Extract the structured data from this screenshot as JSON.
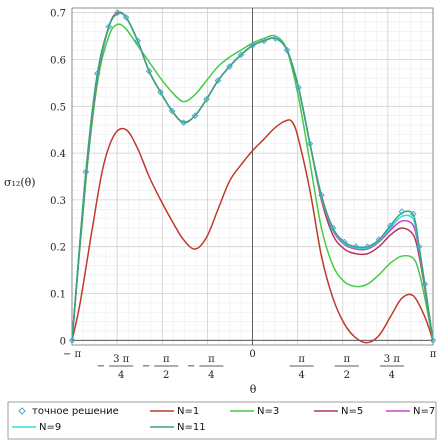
{
  "chart_data": {
    "type": "line",
    "ylabel": "σ₁₂(θ)",
    "xlabel": "θ",
    "xlim": [
      -3.14159,
      3.14159
    ],
    "ylim": [
      -0.01,
      0.71
    ],
    "grid": true,
    "legend_placement": "bottom",
    "y_ticks": [
      0,
      0.1,
      0.2,
      0.3,
      0.4,
      0.5,
      0.6,
      0.7
    ],
    "y_tick_labels": [
      "0",
      "0.1",
      "0.2",
      "0.3",
      "0.4",
      "0.5",
      "0.6",
      "0.7"
    ],
    "x_ticks": [
      -3.14159,
      -2.35619,
      -1.5708,
      -0.7854,
      0,
      0.7854,
      1.5708,
      2.35619,
      3.14159
    ],
    "x_tick_labels": [
      {
        "num": "π",
        "den": "",
        "sign": "−"
      },
      {
        "num": "3 π",
        "den": "4",
        "sign": "−"
      },
      {
        "num": "π",
        "den": "2",
        "sign": "−"
      },
      {
        "num": "π",
        "den": "4",
        "sign": "−"
      },
      {
        "num": "0",
        "den": "",
        "sign": ""
      },
      {
        "num": "π",
        "den": "4",
        "sign": ""
      },
      {
        "num": "π",
        "den": "2",
        "sign": ""
      },
      {
        "num": "3 π",
        "den": "4",
        "sign": ""
      },
      {
        "num": "π",
        "den": "",
        "sign": ""
      }
    ],
    "series": [
      {
        "name": "точное решение",
        "color": "#4aa8c8",
        "marker": "diamond",
        "x": [
          -3.14,
          -2.9,
          -2.7,
          -2.5,
          -2.35,
          -2.2,
          -2.0,
          -1.8,
          -1.6,
          -1.4,
          -1.2,
          -1.0,
          -0.8,
          -0.6,
          -0.4,
          -0.2,
          0,
          0.2,
          0.4,
          0.6,
          0.8,
          1.0,
          1.2,
          1.4,
          1.6,
          1.8,
          2.0,
          2.2,
          2.4,
          2.6,
          2.8,
          2.9,
          3.0,
          3.14
        ],
        "y": [
          0.0,
          0.36,
          0.57,
          0.67,
          0.7,
          0.69,
          0.64,
          0.575,
          0.53,
          0.49,
          0.465,
          0.48,
          0.515,
          0.555,
          0.585,
          0.61,
          0.63,
          0.64,
          0.645,
          0.62,
          0.54,
          0.42,
          0.31,
          0.24,
          0.21,
          0.2,
          0.2,
          0.215,
          0.245,
          0.275,
          0.27,
          0.2,
          0.12,
          0.0
        ]
      },
      {
        "name": "N=1",
        "color": "#c0392b",
        "x": [
          -3.14,
          -3.0,
          -2.8,
          -2.6,
          -2.4,
          -2.2,
          -2.0,
          -1.8,
          -1.6,
          -1.4,
          -1.2,
          -1.0,
          -0.8,
          -0.6,
          -0.4,
          -0.2,
          0,
          0.2,
          0.4,
          0.6,
          0.7,
          0.8,
          1.0,
          1.2,
          1.4,
          1.6,
          1.8,
          2.0,
          2.2,
          2.4,
          2.6,
          2.8,
          3.0,
          3.14
        ],
        "y": [
          0.0,
          0.08,
          0.23,
          0.37,
          0.44,
          0.45,
          0.41,
          0.35,
          0.3,
          0.255,
          0.215,
          0.195,
          0.22,
          0.28,
          0.34,
          0.375,
          0.405,
          0.43,
          0.455,
          0.47,
          0.465,
          0.43,
          0.32,
          0.18,
          0.09,
          0.035,
          0.005,
          -0.005,
          0.01,
          0.05,
          0.09,
          0.095,
          0.05,
          0.0
        ]
      },
      {
        "name": "N=3",
        "color": "#44cc44",
        "x": [
          -3.14,
          -2.9,
          -2.7,
          -2.5,
          -2.35,
          -2.2,
          -2.0,
          -1.8,
          -1.6,
          -1.4,
          -1.2,
          -1.0,
          -0.8,
          -0.6,
          -0.4,
          -0.2,
          0,
          0.2,
          0.4,
          0.6,
          0.8,
          1.0,
          1.2,
          1.4,
          1.6,
          1.8,
          2.0,
          2.2,
          2.4,
          2.6,
          2.8,
          2.9,
          3.0,
          3.14
        ],
        "y": [
          0.0,
          0.34,
          0.55,
          0.65,
          0.675,
          0.665,
          0.63,
          0.595,
          0.56,
          0.53,
          0.51,
          0.525,
          0.555,
          0.585,
          0.605,
          0.62,
          0.635,
          0.645,
          0.65,
          0.62,
          0.52,
          0.38,
          0.24,
          0.16,
          0.125,
          0.115,
          0.12,
          0.14,
          0.165,
          0.18,
          0.175,
          0.145,
          0.09,
          0.0
        ]
      },
      {
        "name": "N=5",
        "color": "#b03a5b",
        "x": [
          -3.14,
          -2.9,
          -2.7,
          -2.5,
          -2.35,
          -2.2,
          -2.0,
          -1.8,
          -1.6,
          -1.4,
          -1.2,
          -1.0,
          -0.8,
          -0.6,
          -0.4,
          -0.2,
          0,
          0.2,
          0.4,
          0.6,
          0.8,
          1.0,
          1.2,
          1.4,
          1.6,
          1.8,
          2.0,
          2.2,
          2.4,
          2.6,
          2.8,
          2.9,
          3.0,
          3.14
        ],
        "y": [
          0.0,
          0.35,
          0.56,
          0.67,
          0.7,
          0.69,
          0.64,
          0.575,
          0.53,
          0.49,
          0.466,
          0.48,
          0.515,
          0.555,
          0.585,
          0.61,
          0.63,
          0.64,
          0.645,
          0.62,
          0.54,
          0.42,
          0.3,
          0.225,
          0.195,
          0.185,
          0.185,
          0.2,
          0.225,
          0.24,
          0.225,
          0.18,
          0.11,
          0.0
        ]
      },
      {
        "name": "N=7",
        "color": "#cc44cc",
        "x": [
          -3.14,
          -2.9,
          -2.7,
          -2.5,
          -2.35,
          -2.2,
          -2.0,
          -1.8,
          -1.6,
          -1.4,
          -1.2,
          -1.0,
          -0.8,
          -0.6,
          -0.4,
          -0.2,
          0,
          0.2,
          0.4,
          0.6,
          0.8,
          1.0,
          1.2,
          1.4,
          1.6,
          1.8,
          2.0,
          2.2,
          2.4,
          2.6,
          2.8,
          2.9,
          3.0,
          3.14
        ],
        "y": [
          0.0,
          0.355,
          0.565,
          0.67,
          0.698,
          0.69,
          0.64,
          0.575,
          0.53,
          0.49,
          0.465,
          0.48,
          0.515,
          0.555,
          0.585,
          0.61,
          0.63,
          0.64,
          0.645,
          0.62,
          0.54,
          0.42,
          0.305,
          0.235,
          0.205,
          0.195,
          0.195,
          0.21,
          0.235,
          0.255,
          0.245,
          0.19,
          0.115,
          0.0
        ]
      },
      {
        "name": "N=9",
        "color": "#33dddd",
        "x": [
          -3.14,
          -2.9,
          -2.7,
          -2.5,
          -2.35,
          -2.2,
          -2.0,
          -1.8,
          -1.6,
          -1.4,
          -1.2,
          -1.0,
          -0.8,
          -0.6,
          -0.4,
          -0.2,
          0,
          0.2,
          0.4,
          0.6,
          0.8,
          1.0,
          1.2,
          1.4,
          1.6,
          1.8,
          2.0,
          2.2,
          2.4,
          2.6,
          2.8,
          2.9,
          3.0,
          3.14
        ],
        "y": [
          0.0,
          0.358,
          0.567,
          0.67,
          0.697,
          0.69,
          0.64,
          0.575,
          0.53,
          0.49,
          0.465,
          0.48,
          0.515,
          0.555,
          0.585,
          0.61,
          0.63,
          0.64,
          0.645,
          0.62,
          0.54,
          0.42,
          0.308,
          0.238,
          0.208,
          0.198,
          0.198,
          0.213,
          0.24,
          0.265,
          0.258,
          0.195,
          0.118,
          0.0
        ]
      },
      {
        "name": "N=11",
        "color": "#3aa37a",
        "x": [
          -3.14,
          -2.9,
          -2.7,
          -2.5,
          -2.35,
          -2.2,
          -2.0,
          -1.8,
          -1.6,
          -1.4,
          -1.2,
          -1.0,
          -0.8,
          -0.6,
          -0.4,
          -0.2,
          0,
          0.2,
          0.4,
          0.6,
          0.8,
          1.0,
          1.2,
          1.4,
          1.6,
          1.8,
          2.0,
          2.2,
          2.4,
          2.6,
          2.8,
          2.9,
          3.0,
          3.14
        ],
        "y": [
          0.0,
          0.36,
          0.57,
          0.67,
          0.698,
          0.69,
          0.64,
          0.575,
          0.53,
          0.49,
          0.465,
          0.48,
          0.515,
          0.555,
          0.585,
          0.61,
          0.63,
          0.64,
          0.645,
          0.62,
          0.54,
          0.42,
          0.31,
          0.24,
          0.21,
          0.2,
          0.2,
          0.215,
          0.245,
          0.272,
          0.268,
          0.2,
          0.12,
          0.0
        ]
      }
    ]
  }
}
